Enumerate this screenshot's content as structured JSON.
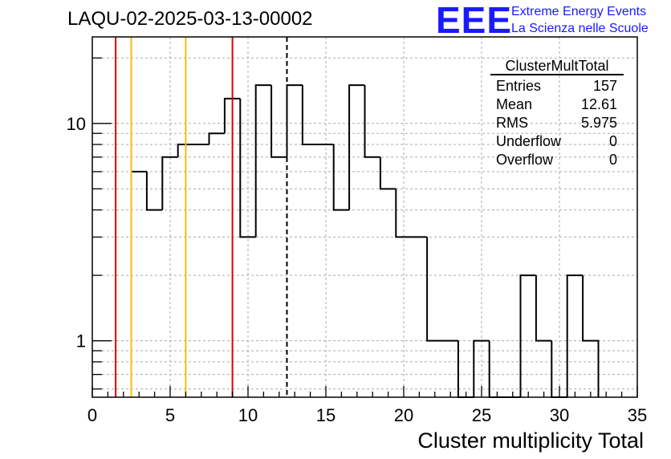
{
  "chart_data": {
    "type": "histogram",
    "title": "LAQU-02-2025-03-13-00002",
    "xlabel": "Cluster multiplicity Total",
    "ylabel": "",
    "xlim": [
      0,
      35
    ],
    "ylim": [
      0.55,
      25
    ],
    "yscale": "log",
    "grid": true,
    "bin_width": 1,
    "bins": [
      {
        "x0": 2.5,
        "x1": 3.5,
        "count": 6
      },
      {
        "x0": 3.5,
        "x1": 4.5,
        "count": 4
      },
      {
        "x0": 4.5,
        "x1": 5.5,
        "count": 7
      },
      {
        "x0": 5.5,
        "x1": 6.5,
        "count": 8
      },
      {
        "x0": 6.5,
        "x1": 7.5,
        "count": 8
      },
      {
        "x0": 7.5,
        "x1": 8.5,
        "count": 9
      },
      {
        "x0": 8.5,
        "x1": 9.5,
        "count": 13
      },
      {
        "x0": 9.5,
        "x1": 10.5,
        "count": 3
      },
      {
        "x0": 10.5,
        "x1": 11.5,
        "count": 15
      },
      {
        "x0": 11.5,
        "x1": 12.5,
        "count": 7
      },
      {
        "x0": 12.5,
        "x1": 13.5,
        "count": 15
      },
      {
        "x0": 13.5,
        "x1": 14.5,
        "count": 8
      },
      {
        "x0": 14.5,
        "x1": 15.5,
        "count": 8
      },
      {
        "x0": 15.5,
        "x1": 16.5,
        "count": 4
      },
      {
        "x0": 16.5,
        "x1": 17.5,
        "count": 15
      },
      {
        "x0": 17.5,
        "x1": 18.5,
        "count": 7
      },
      {
        "x0": 18.5,
        "x1": 19.5,
        "count": 5
      },
      {
        "x0": 19.5,
        "x1": 20.5,
        "count": 3
      },
      {
        "x0": 20.5,
        "x1": 21.5,
        "count": 3
      },
      {
        "x0": 21.5,
        "x1": 22.5,
        "count": 1
      },
      {
        "x0": 22.5,
        "x1": 23.5,
        "count": 1
      },
      {
        "x0": 23.5,
        "x1": 24.5,
        "count": 0
      },
      {
        "x0": 24.5,
        "x1": 25.5,
        "count": 1
      },
      {
        "x0": 25.5,
        "x1": 26.5,
        "count": 0
      },
      {
        "x0": 26.5,
        "x1": 27.5,
        "count": 0
      },
      {
        "x0": 27.5,
        "x1": 28.5,
        "count": 2
      },
      {
        "x0": 28.5,
        "x1": 29.5,
        "count": 1
      },
      {
        "x0": 29.5,
        "x1": 30.5,
        "count": 0
      },
      {
        "x0": 30.5,
        "x1": 31.5,
        "count": 2
      },
      {
        "x0": 31.5,
        "x1": 32.5,
        "count": 1
      }
    ],
    "x_ticks": [
      0,
      5,
      10,
      15,
      20,
      25,
      30,
      35
    ],
    "x_tick_labels": [
      "0",
      "5",
      "10",
      "15",
      "20",
      "25",
      "30",
      "35"
    ],
    "y_ticks": [
      1,
      10
    ],
    "y_tick_labels": [
      "1",
      "10"
    ],
    "vertical_lines": [
      {
        "x": 1.5,
        "color": "#e00000",
        "style": "solid"
      },
      {
        "x": 2.5,
        "color": "#f0c000",
        "style": "solid"
      },
      {
        "x": 6.0,
        "color": "#f0c000",
        "style": "solid"
      },
      {
        "x": 9.0,
        "color": "#e00000",
        "style": "solid"
      },
      {
        "x": 12.5,
        "color": "#000000",
        "style": "dashed"
      }
    ],
    "stats_box": {
      "title": "ClusterMultTotal",
      "rows": [
        {
          "label": "Entries",
          "value": "157"
        },
        {
          "label": "Mean",
          "value": "12.61"
        },
        {
          "label": "RMS",
          "value": "5.975"
        },
        {
          "label": "Underflow",
          "value": "0"
        },
        {
          "label": "Overflow",
          "value": "0"
        }
      ]
    }
  },
  "logo": {
    "mark": "EEE",
    "line1": "Extreme Energy Events",
    "line2": "La Scienza nelle Scuole"
  },
  "colors": {
    "logo": "#1a1aff",
    "histogram": "#000000",
    "grid": "#aaaaaa"
  }
}
